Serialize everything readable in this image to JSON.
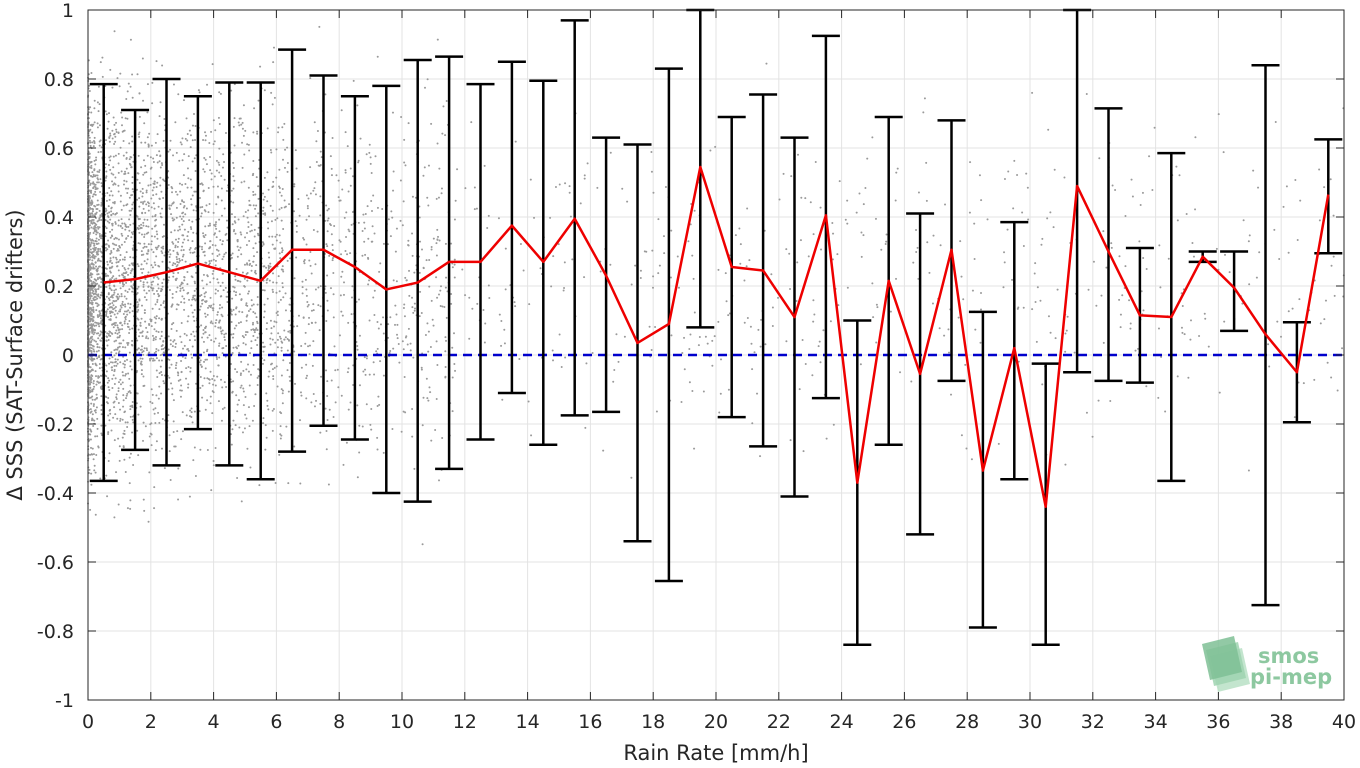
{
  "chart_data": {
    "type": "scatter",
    "xlabel": "Rain Rate [mm/h]",
    "ylabel": "Δ SSS (SAT-Surface drifters)",
    "xlim": [
      0,
      40
    ],
    "ylim": [
      -1,
      1
    ],
    "xticks": [
      0,
      2,
      4,
      6,
      8,
      10,
      12,
      14,
      16,
      18,
      20,
      22,
      24,
      26,
      28,
      30,
      32,
      34,
      36,
      38,
      40
    ],
    "yticks": [
      1,
      0.8,
      0.6,
      0.4,
      0.2,
      0,
      -0.2,
      -0.4,
      -0.6,
      -0.8,
      -1
    ],
    "ytick_labels": [
      "1",
      "0.8",
      "0.6",
      "0.4",
      "0.2",
      "0",
      "-0.2",
      "-0.4",
      "-0.6",
      "-0.8",
      "-1"
    ],
    "grid": true,
    "reference_line": {
      "y": 0,
      "color": "#0000cc",
      "style": "dashed"
    },
    "series": [
      {
        "type": "line",
        "color": "#ee0000",
        "x": [
          0.5,
          1.5,
          2.5,
          3.5,
          4.5,
          5.5,
          6.5,
          7.5,
          8.5,
          9.5,
          10.5,
          11.5,
          12.5,
          13.5,
          14.5,
          15.5,
          16.5,
          17.5,
          18.5,
          19.5,
          20.5,
          21.5,
          22.5,
          23.5,
          24.5,
          25.5,
          26.5,
          27.5,
          28.5,
          29.5,
          30.5,
          31.5,
          32.5,
          33.5,
          34.5,
          35.5,
          36.5,
          37.5,
          38.5,
          39.5
        ],
        "y": [
          0.21,
          0.22,
          0.24,
          0.265,
          0.24,
          0.215,
          0.305,
          0.305,
          0.255,
          0.19,
          0.21,
          0.27,
          0.27,
          0.375,
          0.27,
          0.395,
          0.23,
          0.035,
          0.09,
          0.545,
          0.255,
          0.245,
          0.11,
          0.405,
          -0.37,
          0.215,
          -0.055,
          0.305,
          -0.335,
          0.02,
          -0.44,
          0.49,
          0.3,
          0.115,
          0.11,
          0.285,
          0.195,
          0.06,
          -0.05,
          0.465
        ]
      },
      {
        "type": "errorbar",
        "color": "#000000",
        "x": [
          0.5,
          1.5,
          2.5,
          3.5,
          4.5,
          5.5,
          6.5,
          7.5,
          8.5,
          9.5,
          10.5,
          11.5,
          12.5,
          13.5,
          14.5,
          15.5,
          16.5,
          17.5,
          18.5,
          19.5,
          20.5,
          21.5,
          22.5,
          23.5,
          24.5,
          25.5,
          26.5,
          27.5,
          28.5,
          29.5,
          30.5,
          31.5,
          32.5,
          33.5,
          34.5,
          35.5,
          36.5,
          37.5,
          38.5,
          39.5
        ],
        "upper": [
          0.785,
          0.71,
          0.8,
          0.75,
          0.79,
          0.79,
          0.885,
          0.81,
          0.75,
          0.78,
          0.855,
          0.865,
          0.785,
          0.85,
          0.795,
          0.97,
          0.63,
          0.61,
          0.83,
          1.0,
          0.69,
          0.755,
          0.63,
          0.925,
          0.1,
          0.69,
          0.41,
          0.68,
          0.125,
          0.385,
          -0.025,
          1.0,
          0.715,
          0.31,
          0.585,
          0.3,
          0.3,
          0.84,
          0.095,
          0.625
        ],
        "lower": [
          -0.365,
          -0.275,
          -0.32,
          -0.215,
          -0.32,
          -0.36,
          -0.28,
          -0.205,
          -0.245,
          -0.4,
          -0.425,
          -0.33,
          -0.245,
          -0.11,
          -0.26,
          -0.175,
          -0.165,
          -0.54,
          -0.655,
          0.08,
          -0.18,
          -0.265,
          -0.41,
          -0.125,
          -0.84,
          -0.26,
          -0.52,
          -0.075,
          -0.79,
          -0.36,
          -0.84,
          -0.05,
          -0.075,
          -0.08,
          -0.365,
          0.27,
          0.07,
          -0.725,
          -0.195,
          0.295
        ]
      }
    ],
    "scatter_background": {
      "color": "#9a9a9a",
      "description_of_density": "dense at low rain rate, sparse at high"
    }
  },
  "watermark": {
    "line1": "smos",
    "line2": "pi-mep",
    "color": "#8dc8a0"
  }
}
